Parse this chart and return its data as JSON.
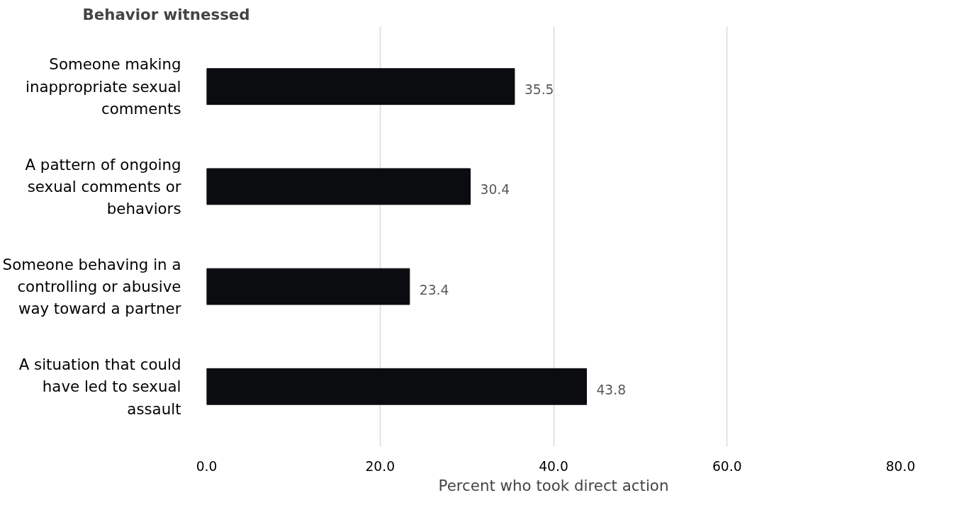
{
  "chart_data": {
    "type": "bar",
    "orientation": "horizontal",
    "ylabel": "Behavior witnessed",
    "xlabel": "Percent who took direct action",
    "categories": [
      "Someone making inappropriate sexual comments",
      "A pattern of ongoing sexual comments or behaviors",
      "Someone behaving in a controlling or abusive way toward a partner",
      "A situation that could have led to sexual assault"
    ],
    "values": [
      35.5,
      30.4,
      23.4,
      43.8
    ],
    "color": "#0a0c10",
    "data_labels": true,
    "xlim": [
      0,
      80
    ],
    "xticks": [
      {
        "value": 0,
        "label": "0.0"
      },
      {
        "value": 20,
        "label": "20.0"
      },
      {
        "value": 40,
        "label": "40.0"
      },
      {
        "value": 60,
        "label": "60.0"
      },
      {
        "value": 80,
        "label": "80.0"
      }
    ],
    "grid": "x"
  }
}
